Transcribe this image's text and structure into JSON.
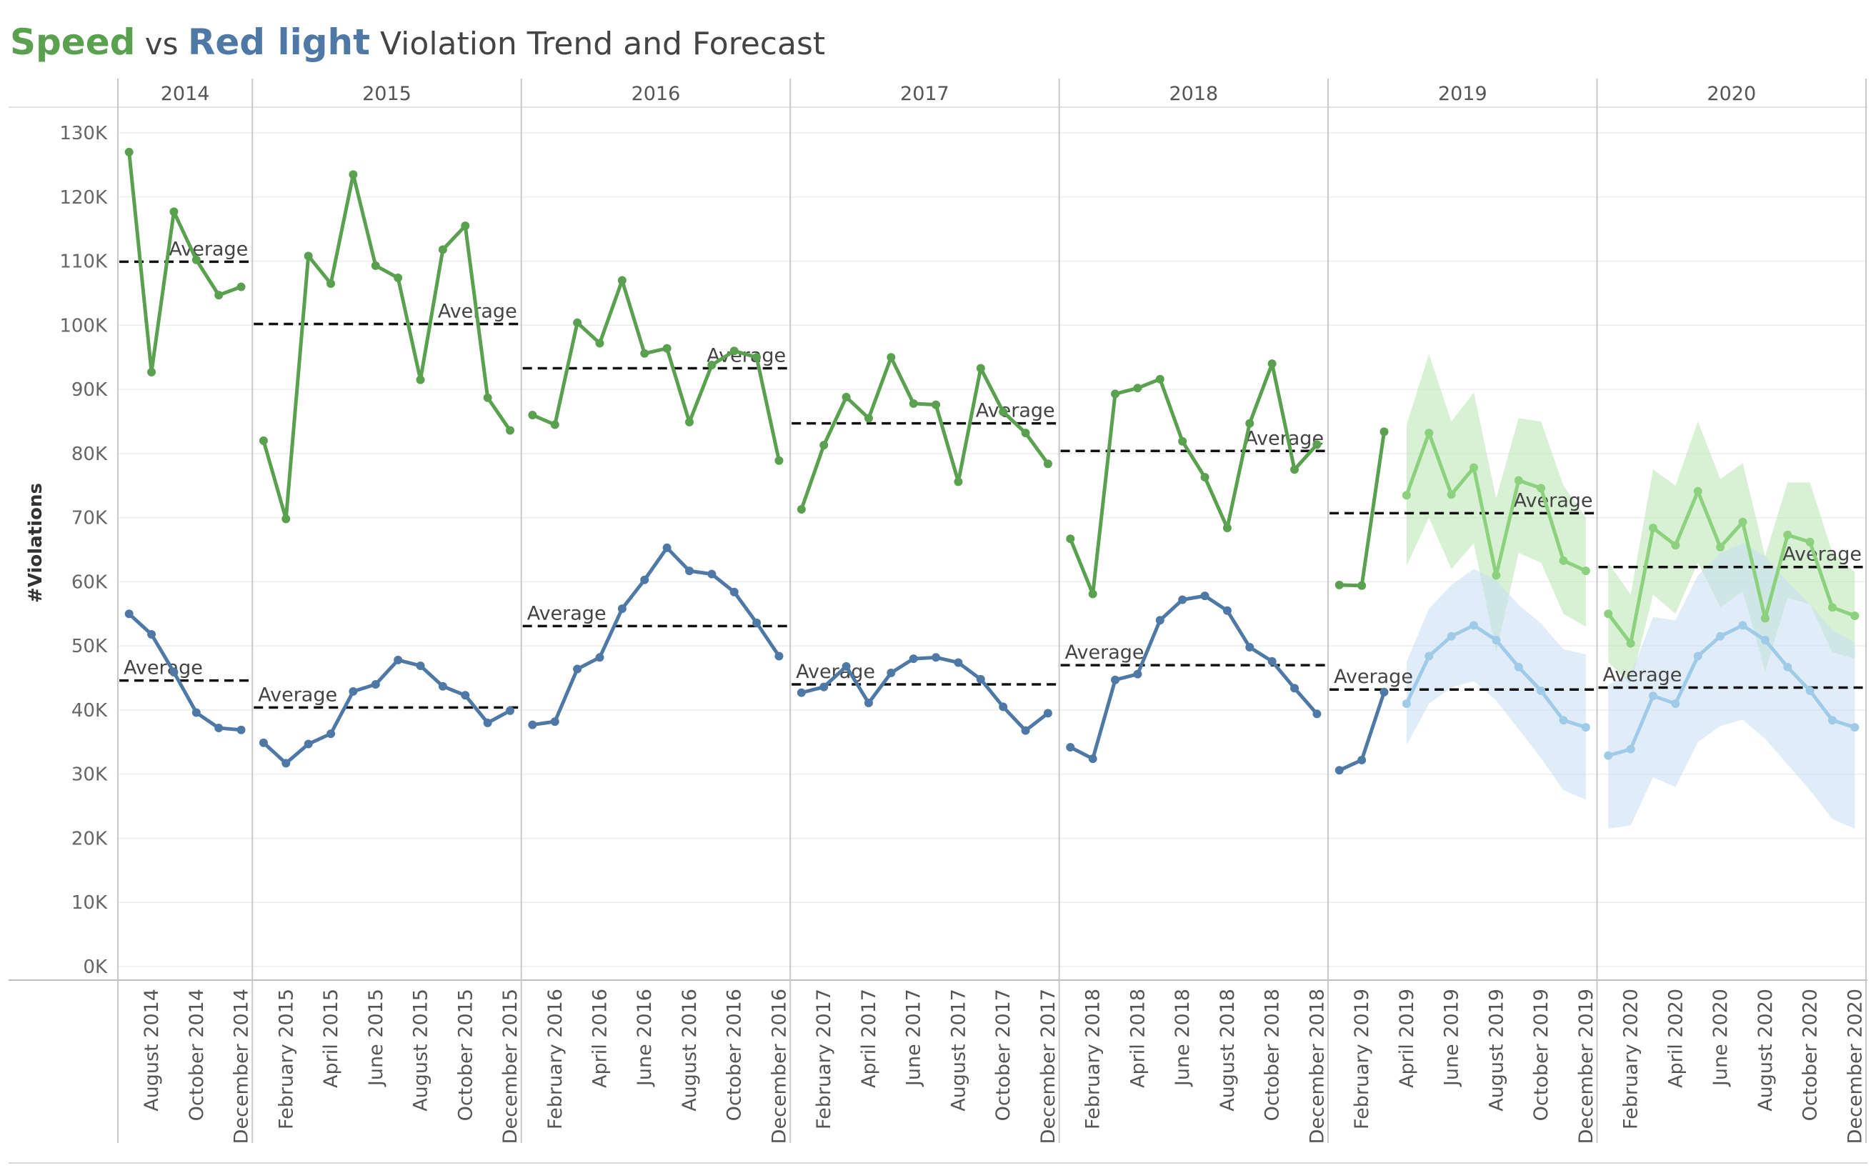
{
  "title": {
    "part1": "Speed",
    "part2": " vs ",
    "part3": "Red light",
    "part4": " Violation Trend and Forecast",
    "speed_color": "#59A14F",
    "red_color": "#4E79A7",
    "rest_color": "#444444"
  },
  "chart_data": {
    "type": "line",
    "title": "Speed vs Red light Violation Trend and Forecast",
    "ylabel": "#Violations",
    "xlabel": "",
    "ylim": [
      0,
      130000
    ],
    "yticks": [
      0,
      10000,
      20000,
      30000,
      40000,
      50000,
      60000,
      70000,
      80000,
      90000,
      100000,
      110000,
      120000,
      130000
    ],
    "ytick_labels": [
      "0K",
      "10K",
      "20K",
      "30K",
      "40K",
      "50K",
      "60K",
      "70K",
      "80K",
      "90K",
      "100K",
      "110K",
      "120K",
      "130K"
    ],
    "grid": true,
    "reference_line_label": "Average",
    "years": [
      {
        "year": "2014",
        "months": [
          7,
          8,
          9,
          10,
          11,
          12
        ],
        "month_labels": [
          {
            "m": 8,
            "label": "August 2014"
          },
          {
            "m": 10,
            "label": "October 2014"
          },
          {
            "m": 12,
            "label": "December 2014"
          }
        ],
        "speed": [
          127000,
          92700,
          117700,
          110200,
          104700,
          106000
        ],
        "red": [
          55000,
          51800,
          45900,
          39600,
          37200,
          36900
        ],
        "speed_avg": 109900,
        "red_avg": 44600
      },
      {
        "year": "2015",
        "months": [
          1,
          2,
          3,
          4,
          5,
          6,
          7,
          8,
          9,
          10,
          11,
          12
        ],
        "month_labels": [
          {
            "m": 2,
            "label": "February 2015"
          },
          {
            "m": 4,
            "label": "April 2015"
          },
          {
            "m": 6,
            "label": "June 2015"
          },
          {
            "m": 8,
            "label": "August 2015"
          },
          {
            "m": 10,
            "label": "October 2015"
          },
          {
            "m": 12,
            "label": "December 2015"
          }
        ],
        "speed": [
          82000,
          69800,
          110800,
          106500,
          123500,
          109300,
          107400,
          91500,
          111800,
          115500,
          88700,
          83600
        ],
        "red": [
          34900,
          31700,
          34700,
          36300,
          42900,
          44000,
          47800,
          46900,
          43700,
          42300,
          38000,
          39900
        ],
        "speed_avg": 100200,
        "red_avg": 40400
      },
      {
        "year": "2016",
        "months": [
          1,
          2,
          3,
          4,
          5,
          6,
          7,
          8,
          9,
          10,
          11,
          12
        ],
        "month_labels": [
          {
            "m": 2,
            "label": "February 2016"
          },
          {
            "m": 4,
            "label": "April 2016"
          },
          {
            "m": 6,
            "label": "June 2016"
          },
          {
            "m": 8,
            "label": "August 2016"
          },
          {
            "m": 10,
            "label": "October 2016"
          },
          {
            "m": 12,
            "label": "December 2016"
          }
        ],
        "speed": [
          86000,
          84500,
          100400,
          97200,
          107000,
          95600,
          96400,
          84900,
          93800,
          96000,
          95000,
          78900
        ],
        "red": [
          37700,
          38200,
          46400,
          48200,
          55800,
          60300,
          65300,
          61700,
          61200,
          58400,
          53600,
          48400
        ],
        "speed_avg": 93300,
        "red_avg": 53100
      },
      {
        "year": "2017",
        "months": [
          1,
          2,
          3,
          4,
          5,
          6,
          7,
          8,
          9,
          10,
          11,
          12
        ],
        "month_labels": [
          {
            "m": 2,
            "label": "February 2017"
          },
          {
            "m": 4,
            "label": "April 2017"
          },
          {
            "m": 6,
            "label": "June 2017"
          },
          {
            "m": 8,
            "label": "August 2017"
          },
          {
            "m": 10,
            "label": "October 2017"
          },
          {
            "m": 12,
            "label": "December 2017"
          }
        ],
        "speed": [
          71300,
          81300,
          88800,
          85500,
          95000,
          87800,
          87600,
          75600,
          93300,
          86500,
          83200,
          78400
        ],
        "red": [
          42700,
          43600,
          46800,
          41100,
          45800,
          48000,
          48200,
          47400,
          44800,
          40500,
          36800,
          39500
        ],
        "speed_avg": 84700,
        "red_avg": 44000
      },
      {
        "year": "2018",
        "months": [
          1,
          2,
          3,
          4,
          5,
          6,
          7,
          8,
          9,
          10,
          11,
          12
        ],
        "month_labels": [
          {
            "m": 2,
            "label": "February 2018"
          },
          {
            "m": 4,
            "label": "April 2018"
          },
          {
            "m": 6,
            "label": "June 2018"
          },
          {
            "m": 8,
            "label": "August 2018"
          },
          {
            "m": 10,
            "label": "October 2018"
          },
          {
            "m": 12,
            "label": "December 2018"
          }
        ],
        "speed": [
          66700,
          58100,
          89300,
          90200,
          91600,
          81900,
          76300,
          68400,
          84700,
          94000,
          77500,
          81400
        ],
        "red": [
          34200,
          32400,
          44700,
          45600,
          54000,
          57200,
          57800,
          55500,
          49800,
          47600,
          43400,
          39400
        ],
        "speed_avg": 80400,
        "red_avg": 47000
      },
      {
        "year": "2019",
        "months": [
          1,
          2,
          3,
          4,
          5,
          6,
          7,
          8,
          9,
          10,
          11,
          12
        ],
        "month_labels": [
          {
            "m": 2,
            "label": "February 2019"
          },
          {
            "m": 4,
            "label": "April 2019"
          },
          {
            "m": 6,
            "label": "June 2019"
          },
          {
            "m": 8,
            "label": "August 2019"
          },
          {
            "m": 10,
            "label": "October 2019"
          },
          {
            "m": 12,
            "label": "December 2019"
          }
        ],
        "speed": [
          59500,
          59400,
          83400,
          null,
          null,
          null,
          null,
          null,
          null,
          null,
          null,
          null
        ],
        "red": [
          30600,
          32200,
          42800,
          null,
          null,
          null,
          null,
          null,
          null,
          null,
          null,
          null
        ],
        "speed_forecast": [
          null,
          null,
          null,
          73500,
          83200,
          73600,
          77800,
          61000,
          75800,
          74600,
          63300,
          61700
        ],
        "speed_forecast_low": [
          null,
          null,
          null,
          62500,
          70000,
          62000,
          66000,
          49000,
          64500,
          63000,
          55000,
          53000
        ],
        "speed_forecast_high": [
          null,
          null,
          null,
          84500,
          95500,
          85000,
          89500,
          73000,
          85500,
          85000,
          75000,
          70000
        ],
        "red_forecast": [
          null,
          null,
          null,
          41000,
          48400,
          51500,
          53200,
          50900,
          46700,
          43000,
          38400,
          37300
        ],
        "red_forecast_low": [
          null,
          null,
          null,
          34500,
          41000,
          43500,
          44500,
          41500,
          37000,
          32500,
          27500,
          26000
        ],
        "red_forecast_high": [
          null,
          null,
          null,
          47500,
          55800,
          59500,
          62000,
          60300,
          56400,
          53500,
          49500,
          48700
        ],
        "speed_avg": 70700,
        "red_avg": 43200
      },
      {
        "year": "2020",
        "months": [
          1,
          2,
          3,
          4,
          5,
          6,
          7,
          8,
          9,
          10,
          11,
          12
        ],
        "month_labels": [
          {
            "m": 2,
            "label": "February 2020"
          },
          {
            "m": 4,
            "label": "April 2020"
          },
          {
            "m": 6,
            "label": "June 2020"
          },
          {
            "m": 8,
            "label": "August 2020"
          },
          {
            "m": 10,
            "label": "October 2020"
          },
          {
            "m": 12,
            "label": "December 2020"
          }
        ],
        "speed": [
          null,
          null,
          null,
          null,
          null,
          null,
          null,
          null,
          null,
          null,
          null,
          null
        ],
        "red": [
          null,
          null,
          null,
          null,
          null,
          null,
          null,
          null,
          null,
          null,
          null,
          null
        ],
        "speed_forecast": [
          55000,
          50400,
          68400,
          65700,
          74100,
          65400,
          69300,
          54300,
          67300,
          66200,
          56000,
          54700
        ],
        "speed_forecast_low": [
          47500,
          44000,
          58000,
          55000,
          63000,
          56000,
          58500,
          46000,
          57500,
          56500,
          49000,
          48000
        ],
        "speed_forecast_high": [
          63000,
          58000,
          77500,
          75000,
          85000,
          76000,
          78500,
          64000,
          75500,
          75500,
          64500,
          61500
        ],
        "red_forecast": [
          32900,
          33900,
          42200,
          41000,
          48400,
          51500,
          53200,
          50900,
          46700,
          43000,
          38400,
          37300
        ],
        "red_forecast_low": [
          21500,
          22000,
          29500,
          28000,
          35000,
          37500,
          38500,
          35500,
          31500,
          27500,
          23000,
          21500
        ],
        "red_forecast_high": [
          44000,
          45500,
          54500,
          54000,
          61000,
          64500,
          66000,
          64000,
          60000,
          56500,
          52500,
          50500
        ],
        "speed_avg": 62300,
        "red_avg": 43500
      }
    ],
    "colors": {
      "speed": "#59A14F",
      "red": "#4E79A7",
      "speed_forecast": "#8CD17D",
      "red_forecast": "#A0CBE8",
      "speed_band": "#B8E3AE",
      "red_band": "#C6DFF3"
    }
  }
}
